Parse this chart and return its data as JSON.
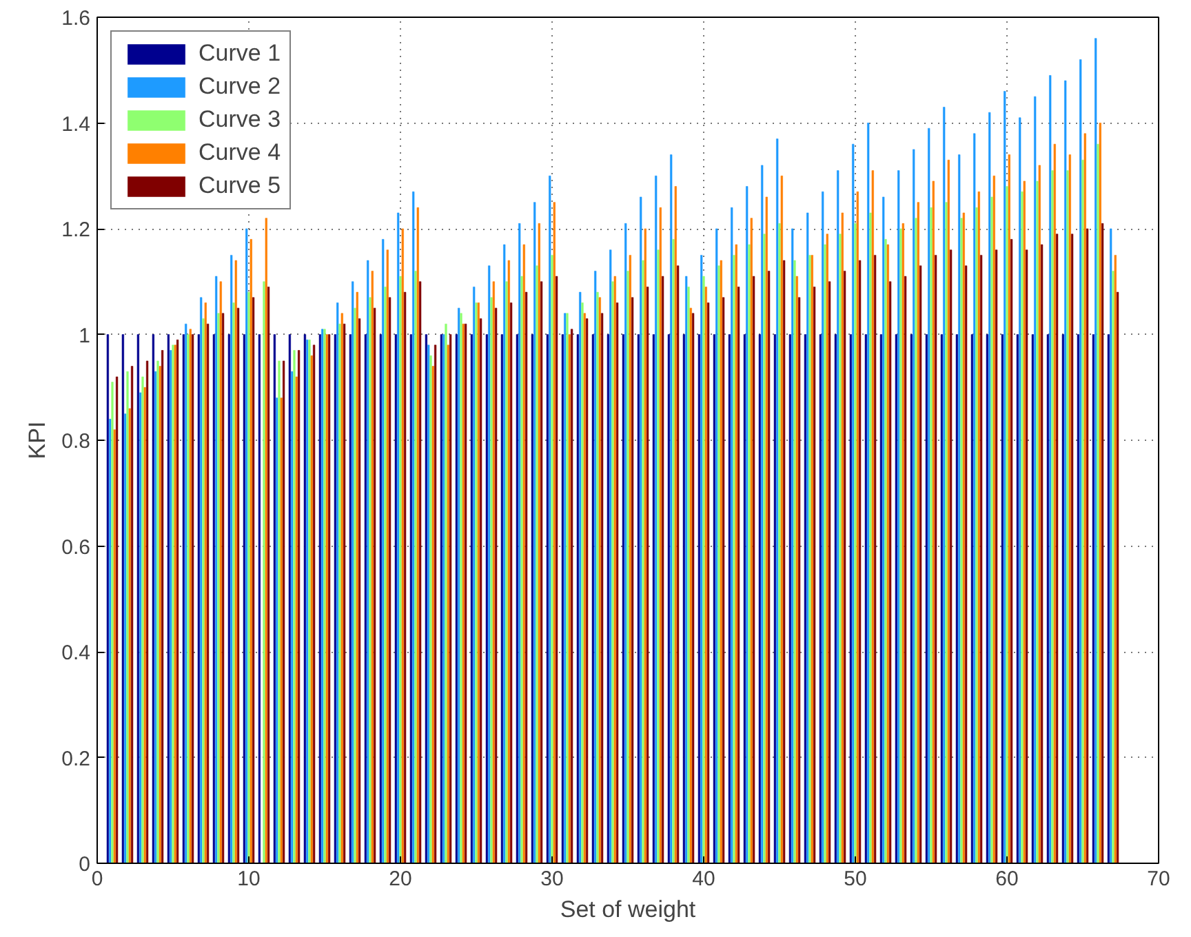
{
  "chart_data": {
    "type": "bar",
    "xlabel": "Set of weight",
    "ylabel": "KPI",
    "x": [
      1,
      2,
      3,
      4,
      5,
      6,
      7,
      8,
      9,
      10,
      11,
      12,
      13,
      14,
      15,
      16,
      17,
      18,
      19,
      20,
      21,
      22,
      23,
      24,
      25,
      26,
      27,
      28,
      29,
      30,
      31,
      32,
      33,
      34,
      35,
      36,
      37,
      38,
      39,
      40,
      41,
      42,
      43,
      44,
      45,
      46,
      47,
      48,
      49,
      50,
      51,
      52,
      53,
      54,
      55,
      56,
      57,
      58,
      59,
      60,
      61,
      62,
      63,
      64,
      65,
      66,
      67
    ],
    "xlim": [
      0,
      70
    ],
    "ylim": [
      0,
      1.6
    ],
    "xticks": [
      0,
      10,
      20,
      30,
      40,
      50,
      60,
      70
    ],
    "yticks": [
      0,
      0.2,
      0.4,
      0.6,
      0.8,
      1,
      1.2,
      1.4,
      1.6
    ],
    "grid": true,
    "legend": "top left",
    "series": [
      {
        "name": "Curve 1",
        "color": "#00008f",
        "values": [
          1,
          1,
          1,
          1,
          1,
          1,
          1,
          1,
          1,
          1,
          1,
          1,
          1,
          1,
          1,
          1,
          1,
          1,
          1,
          1,
          1,
          1,
          1,
          1,
          1,
          1,
          1,
          1,
          1,
          1,
          1,
          1,
          1,
          1,
          1,
          1,
          1,
          1,
          1,
          1,
          1,
          1,
          1,
          1,
          1,
          1,
          1,
          1,
          1,
          1,
          1,
          1,
          1,
          1,
          1,
          1,
          1,
          1,
          1,
          1,
          1,
          1,
          1,
          1,
          1,
          1,
          1
        ]
      },
      {
        "name": "Curve 2",
        "color": "#1e9bff",
        "values": [
          0.84,
          0.85,
          0.89,
          0.93,
          0.97,
          1.02,
          1.07,
          1.11,
          1.15,
          1.2,
          null,
          0.88,
          0.93,
          0.99,
          1.01,
          1.06,
          1.1,
          1.14,
          1.18,
          1.23,
          1.27,
          0.98,
          1.0,
          1.05,
          1.09,
          1.13,
          1.17,
          1.21,
          1.25,
          1.3,
          1.04,
          1.08,
          1.12,
          1.16,
          1.21,
          1.26,
          1.3,
          1.34,
          1.11,
          1.15,
          1.2,
          1.24,
          1.28,
          1.32,
          1.37,
          1.2,
          1.23,
          1.27,
          1.31,
          1.36,
          1.4,
          1.26,
          1.31,
          1.35,
          1.39,
          1.43,
          1.34,
          1.38,
          1.42,
          1.46,
          1.41,
          1.45,
          1.49,
          1.48,
          1.52,
          1.56,
          1.2
        ]
      },
      {
        "name": "Curve 3",
        "color": "#8fff70",
        "values": [
          0.91,
          0.93,
          0.92,
          0.95,
          0.98,
          1.0,
          1.03,
          1.04,
          1.06,
          1.08,
          1.1,
          0.95,
          0.97,
          0.99,
          1.01,
          1.02,
          1.05,
          1.07,
          1.09,
          1.11,
          1.12,
          0.96,
          1.02,
          1.04,
          1.06,
          1.07,
          1.1,
          1.11,
          1.13,
          1.15,
          1.04,
          1.06,
          1.08,
          1.1,
          1.12,
          1.14,
          1.16,
          1.18,
          1.09,
          1.11,
          1.13,
          1.15,
          1.17,
          1.19,
          1.21,
          1.14,
          1.15,
          1.17,
          1.19,
          1.21,
          1.23,
          1.18,
          1.2,
          1.22,
          1.24,
          1.25,
          1.22,
          1.24,
          1.26,
          1.28,
          1.27,
          1.29,
          1.31,
          1.31,
          1.33,
          1.36,
          1.12
        ]
      },
      {
        "name": "Curve 4",
        "color": "#ff8000",
        "values": [
          0.82,
          0.86,
          0.9,
          0.94,
          0.98,
          1.01,
          1.06,
          1.1,
          1.14,
          1.18,
          1.22,
          0.88,
          0.92,
          0.96,
          1.0,
          1.04,
          1.08,
          1.12,
          1.16,
          1.2,
          1.24,
          0.94,
          0.98,
          1.02,
          1.06,
          1.1,
          1.14,
          1.17,
          1.21,
          1.25,
          1.0,
          1.04,
          1.07,
          1.11,
          1.15,
          1.2,
          1.24,
          1.28,
          1.05,
          1.09,
          1.14,
          1.17,
          1.22,
          1.26,
          1.3,
          1.11,
          1.15,
          1.19,
          1.23,
          1.27,
          1.31,
          1.17,
          1.21,
          1.25,
          1.29,
          1.33,
          1.23,
          1.27,
          1.3,
          1.34,
          1.29,
          1.32,
          1.36,
          1.34,
          1.38,
          1.4,
          1.15
        ]
      },
      {
        "name": "Curve 5",
        "color": "#800000",
        "values": [
          0.92,
          0.94,
          0.95,
          0.97,
          0.99,
          1.0,
          1.02,
          1.04,
          1.05,
          1.07,
          1.09,
          0.95,
          0.97,
          0.98,
          1.0,
          1.02,
          1.03,
          1.05,
          1.07,
          1.08,
          1.1,
          0.98,
          1.0,
          1.02,
          1.03,
          1.05,
          1.06,
          1.08,
          1.1,
          1.11,
          1.01,
          1.03,
          1.04,
          1.06,
          1.07,
          1.09,
          1.11,
          1.13,
          1.04,
          1.06,
          1.07,
          1.09,
          1.11,
          1.12,
          1.14,
          1.07,
          1.09,
          1.1,
          1.12,
          1.14,
          1.15,
          1.1,
          1.11,
          1.13,
          1.15,
          1.16,
          1.13,
          1.15,
          1.16,
          1.18,
          1.16,
          1.17,
          1.19,
          1.19,
          1.2,
          1.21,
          1.08
        ]
      }
    ]
  }
}
